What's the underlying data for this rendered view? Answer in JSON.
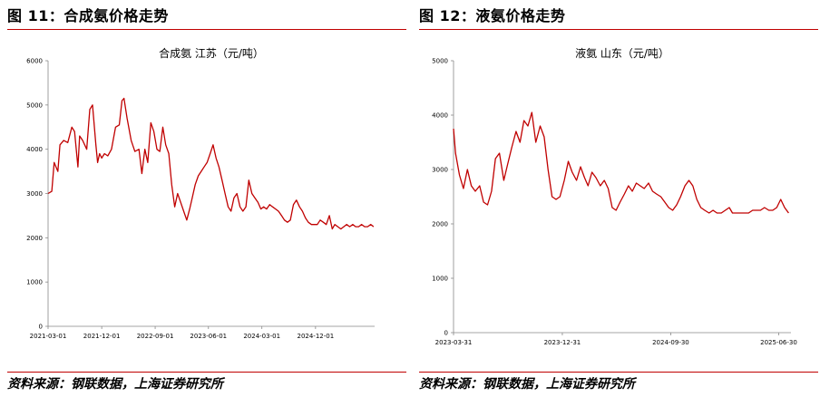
{
  "panels": [
    {
      "figure_title": "图 11：合成氨价格走势",
      "source": "资料来源：钢联数据，上海证券研究所"
    },
    {
      "figure_title": "图 12：液氨价格走势",
      "source": "资料来源：钢联数据，上海证券研究所"
    }
  ],
  "chart_data": [
    {
      "type": "line",
      "title": "合成氨 江苏（元/吨）",
      "line_color": "#c00000",
      "ylim": [
        0,
        6000
      ],
      "yticks": [
        0,
        1000,
        2000,
        3000,
        4000,
        5000,
        6000
      ],
      "xlim": [
        "2021-03-01",
        "2025-09-30"
      ],
      "xticks": [
        "2021-03-01",
        "2021-12-01",
        "2022-09-01",
        "2023-06-01",
        "2024-03-01",
        "2024-12-01"
      ],
      "series": [
        {
          "x": [
            "2021-03-01",
            "2021-03-20",
            "2021-04-01",
            "2021-04-20",
            "2021-05-01",
            "2021-05-20",
            "2021-06-10",
            "2021-07-01",
            "2021-07-15",
            "2021-08-01",
            "2021-08-10",
            "2021-08-25",
            "2021-09-15",
            "2021-10-01",
            "2021-10-15",
            "2021-11-01",
            "2021-11-10",
            "2021-11-20",
            "2021-12-01",
            "2021-12-15",
            "2022-01-01",
            "2022-01-20",
            "2022-02-10",
            "2022-03-01",
            "2022-03-15",
            "2022-03-25",
            "2022-04-10",
            "2022-05-01",
            "2022-05-20",
            "2022-06-10",
            "2022-06-25",
            "2022-07-10",
            "2022-07-25",
            "2022-08-10",
            "2022-08-25",
            "2022-09-10",
            "2022-09-25",
            "2022-10-10",
            "2022-10-25",
            "2022-11-10",
            "2022-11-25",
            "2022-12-10",
            "2022-12-25",
            "2023-01-10",
            "2023-01-25",
            "2023-02-10",
            "2023-02-25",
            "2023-03-10",
            "2023-03-25",
            "2023-04-10",
            "2023-04-25",
            "2023-05-10",
            "2023-05-25",
            "2023-06-10",
            "2023-06-25",
            "2023-07-10",
            "2023-07-25",
            "2023-08-10",
            "2023-08-25",
            "2023-09-10",
            "2023-09-25",
            "2023-10-10",
            "2023-10-25",
            "2023-11-10",
            "2023-11-25",
            "2023-12-10",
            "2023-12-25",
            "2024-01-10",
            "2024-01-25",
            "2024-02-10",
            "2024-02-25",
            "2024-03-10",
            "2024-03-25",
            "2024-04-10",
            "2024-04-25",
            "2024-05-10",
            "2024-05-25",
            "2024-06-10",
            "2024-06-25",
            "2024-07-10",
            "2024-07-25",
            "2024-08-10",
            "2024-08-25",
            "2024-09-10",
            "2024-09-25",
            "2024-10-10",
            "2024-10-25",
            "2024-11-10",
            "2024-11-25",
            "2024-12-10",
            "2024-12-25",
            "2025-01-10",
            "2025-01-25",
            "2025-02-10",
            "2025-02-25",
            "2025-03-10",
            "2025-03-25",
            "2025-04-10",
            "2025-04-25",
            "2025-05-10",
            "2025-05-25",
            "2025-06-10",
            "2025-06-25",
            "2025-07-10",
            "2025-07-25",
            "2025-08-10",
            "2025-08-25",
            "2025-09-10",
            "2025-09-25"
          ],
          "y": [
            3000,
            3050,
            3700,
            3500,
            4100,
            4200,
            4150,
            4500,
            4400,
            3600,
            4300,
            4200,
            4000,
            4900,
            5000,
            4100,
            3700,
            3900,
            3800,
            3900,
            3850,
            4000,
            4500,
            4550,
            5100,
            5150,
            4700,
            4200,
            3950,
            4000,
            3450,
            4000,
            3700,
            4600,
            4400,
            4000,
            3950,
            4500,
            4100,
            3900,
            3200,
            2700,
            3000,
            2800,
            2600,
            2400,
            2650,
            2900,
            3200,
            3400,
            3500,
            3600,
            3700,
            3900,
            4100,
            3800,
            3600,
            3300,
            3000,
            2700,
            2600,
            2900,
            3000,
            2700,
            2600,
            2700,
            3300,
            3000,
            2900,
            2800,
            2650,
            2700,
            2650,
            2750,
            2700,
            2650,
            2600,
            2500,
            2400,
            2350,
            2400,
            2750,
            2850,
            2700,
            2600,
            2450,
            2350,
            2300,
            2300,
            2300,
            2400,
            2350,
            2300,
            2500,
            2200,
            2300,
            2250,
            2200,
            2250,
            2300,
            2250,
            2300,
            2250,
            2250,
            2300,
            2250,
            2250,
            2300,
            2250
          ],
          "_note": ""
        }
      ]
    },
    {
      "type": "line",
      "title": "液氨 山东（元/吨）",
      "line_color": "#c00000",
      "ylim": [
        0,
        5000
      ],
      "yticks": [
        0,
        1000,
        2000,
        3000,
        4000,
        5000
      ],
      "xlim": [
        "2023-03-31",
        "2025-07-31"
      ],
      "xticks": [
        "2023-03-31",
        "2023-12-31",
        "2024-09-30",
        "2025-06-30"
      ],
      "series": [
        {
          "x": [
            "2023-03-31",
            "2023-04-05",
            "2023-04-15",
            "2023-04-25",
            "2023-05-05",
            "2023-05-15",
            "2023-05-25",
            "2023-06-05",
            "2023-06-15",
            "2023-06-25",
            "2023-07-05",
            "2023-07-15",
            "2023-07-25",
            "2023-08-05",
            "2023-08-15",
            "2023-08-25",
            "2023-09-05",
            "2023-09-15",
            "2023-09-25",
            "2023-10-05",
            "2023-10-15",
            "2023-10-25",
            "2023-11-05",
            "2023-11-15",
            "2023-11-25",
            "2023-12-05",
            "2023-12-15",
            "2023-12-25",
            "2024-01-05",
            "2024-01-15",
            "2024-01-25",
            "2024-02-05",
            "2024-02-15",
            "2024-02-25",
            "2024-03-05",
            "2024-03-15",
            "2024-03-25",
            "2024-04-05",
            "2024-04-15",
            "2024-04-25",
            "2024-05-05",
            "2024-05-15",
            "2024-05-25",
            "2024-06-05",
            "2024-06-15",
            "2024-06-25",
            "2024-07-05",
            "2024-07-15",
            "2024-07-25",
            "2024-08-05",
            "2024-08-15",
            "2024-08-25",
            "2024-09-05",
            "2024-09-15",
            "2024-09-25",
            "2024-10-05",
            "2024-10-15",
            "2024-10-25",
            "2024-11-05",
            "2024-11-15",
            "2024-11-25",
            "2024-12-05",
            "2024-12-15",
            "2024-12-25",
            "2025-01-05",
            "2025-01-15",
            "2025-01-25",
            "2025-02-05",
            "2025-02-15",
            "2025-02-25",
            "2025-03-05",
            "2025-03-15",
            "2025-03-25",
            "2025-04-05",
            "2025-04-15",
            "2025-04-25",
            "2025-05-05",
            "2025-05-15",
            "2025-05-25",
            "2025-06-05",
            "2025-06-15",
            "2025-06-25",
            "2025-07-05",
            "2025-07-15",
            "2025-07-25"
          ],
          "y": [
            3750,
            3300,
            2900,
            2650,
            3000,
            2700,
            2600,
            2700,
            2400,
            2350,
            2600,
            3200,
            3300,
            2800,
            3100,
            3400,
            3700,
            3500,
            3900,
            3800,
            4050,
            3500,
            3800,
            3600,
            3000,
            2500,
            2450,
            2500,
            2800,
            3150,
            2950,
            2800,
            3050,
            2850,
            2700,
            2950,
            2850,
            2700,
            2800,
            2650,
            2300,
            2250,
            2400,
            2550,
            2700,
            2600,
            2750,
            2700,
            2650,
            2750,
            2600,
            2550,
            2500,
            2400,
            2300,
            2250,
            2350,
            2500,
            2700,
            2800,
            2700,
            2450,
            2300,
            2250,
            2200,
            2250,
            2200,
            2200,
            2250,
            2300,
            2200,
            2200,
            2200,
            2200,
            2200,
            2250,
            2250,
            2250,
            2300,
            2250,
            2250,
            2300,
            2450,
            2300,
            2200
          ],
          "_note": ""
        }
      ]
    }
  ]
}
